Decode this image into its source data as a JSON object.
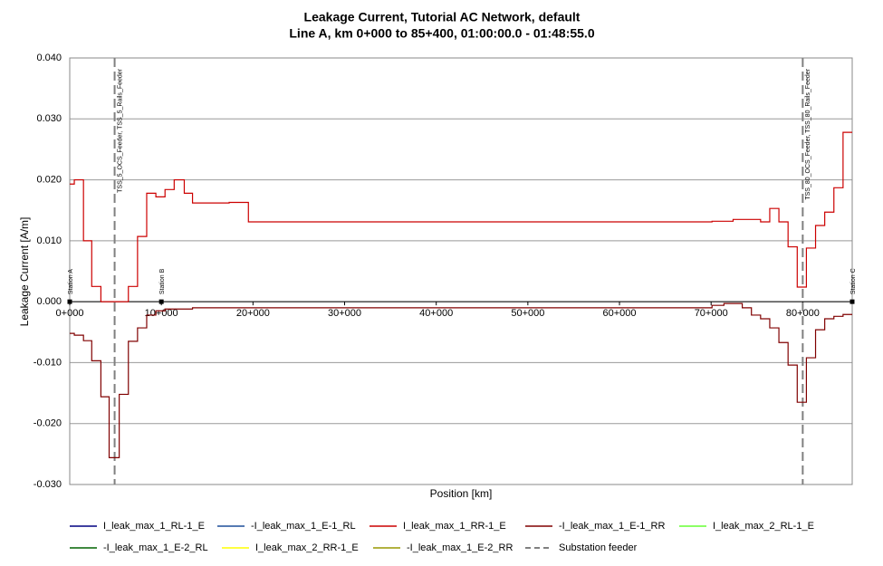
{
  "chart_data": {
    "type": "line",
    "title": "Leakage Current, Tutorial AC Network, default",
    "subtitle": "Line A, km 0+000 to 85+400, 01:00:00.0 - 01:48:55.0",
    "x_label": "Position [km]",
    "y_label": "Leakage Current  [A/m]",
    "xlim": [
      0,
      85.4
    ],
    "ylim": [
      -0.03,
      0.04
    ],
    "xticks": [
      {
        "value": 0,
        "label": "0+000"
      },
      {
        "value": 10,
        "label": "10+000"
      },
      {
        "value": 20,
        "label": "20+000"
      },
      {
        "value": 30,
        "label": "30+000"
      },
      {
        "value": 40,
        "label": "40+000"
      },
      {
        "value": 50,
        "label": "50+000"
      },
      {
        "value": 60,
        "label": "60+000"
      },
      {
        "value": 70,
        "label": "70+000"
      },
      {
        "value": 80,
        "label": "80+000"
      }
    ],
    "yticks": [
      {
        "value": 0.04,
        "label": "0.040"
      },
      {
        "value": 0.03,
        "label": "0.030"
      },
      {
        "value": 0.02,
        "label": "0.020"
      },
      {
        "value": 0.01,
        "label": "0.010"
      },
      {
        "value": 0,
        "label": "0.000"
      },
      {
        "value": -0.01,
        "label": "-0.010"
      },
      {
        "value": -0.02,
        "label": "-0.020"
      },
      {
        "value": -0.03,
        "label": "-0.030"
      }
    ],
    "grid": true,
    "step": true,
    "series": [
      {
        "name": "I_leak_max_1_RL-1_E",
        "color": "#000080"
      },
      {
        "name": "-I_leak_max_1_E-1_RL",
        "color": "#1f4e9a"
      },
      {
        "name": "I_leak_max_1_RR-1_E",
        "color": "#cc0000",
        "x": [
          0,
          0.5,
          1.5,
          2.4,
          3.4,
          6.4,
          7.4,
          8.4,
          9.4,
          10.4,
          11.4,
          12.5,
          13.4,
          17.4,
          19.5,
          70.1,
          72.4,
          75.4,
          76.4,
          77.4,
          78.4,
          79.4,
          80.4,
          81.4,
          82.4,
          83.4,
          84.4,
          85.4
        ],
        "values": [
          0.0193,
          0.02,
          0.01,
          0.0025,
          0,
          0.0025,
          0.0107,
          0.0178,
          0.0172,
          0.0184,
          0.02,
          0.0178,
          0.0162,
          0.0163,
          0.0131,
          0.0132,
          0.0135,
          0.0131,
          0.0153,
          0.0131,
          0.009,
          0.0024,
          0.0088,
          0.0125,
          0.0147,
          0.0187,
          0.0278,
          0.0278
        ]
      },
      {
        "name": "-I_leak_max_1_E-1_RR",
        "color": "#800000",
        "x": [
          0,
          0.5,
          1.5,
          2.4,
          3.4,
          4.3,
          5.4,
          6.4,
          7.4,
          8.4,
          9.4,
          10.4,
          13.4,
          70.1,
          71.4,
          73.4,
          74.4,
          75.4,
          76.4,
          77.4,
          78.4,
          79.4,
          80.4,
          81.4,
          82.4,
          83.4,
          84.4,
          85.4
        ],
        "values": [
          -0.0052,
          -0.0055,
          -0.0064,
          -0.0097,
          -0.0156,
          -0.0256,
          -0.0152,
          -0.0065,
          -0.0043,
          -0.0022,
          -0.0015,
          -0.0012,
          -0.001,
          -0.0006,
          -0.0003,
          -0.001,
          -0.0022,
          -0.0028,
          -0.0043,
          -0.0067,
          -0.0104,
          -0.0165,
          -0.0092,
          -0.0046,
          -0.0028,
          -0.0024,
          -0.0021,
          -0.0021
        ]
      },
      {
        "name": "I_leak_max_2_RL-1_E",
        "color": "#66ff33"
      },
      {
        "name": "-I_leak_max_1_E-2_RL",
        "color": "#006400"
      },
      {
        "name": "I_leak_max_2_RR-1_E",
        "color": "#ffff00"
      },
      {
        "name": "-I_leak_max_1_E-2_RR",
        "color": "#999900"
      }
    ],
    "feeder_legend": {
      "name": "Substation feeder",
      "color": "#808080"
    },
    "feeders": [
      {
        "x": 4.9,
        "label": "TSS_5_OCS_Feeder, TSS_5_Rails_Feeder"
      },
      {
        "x": 80,
        "label": "TSS_80_OCS_Feeder, TSS_80_Rails_Feeder"
      }
    ],
    "stations": [
      {
        "x": 0,
        "label": "Station A"
      },
      {
        "x": 10,
        "label": "Station B"
      },
      {
        "x": 85.4,
        "label": "Station C"
      }
    ]
  }
}
